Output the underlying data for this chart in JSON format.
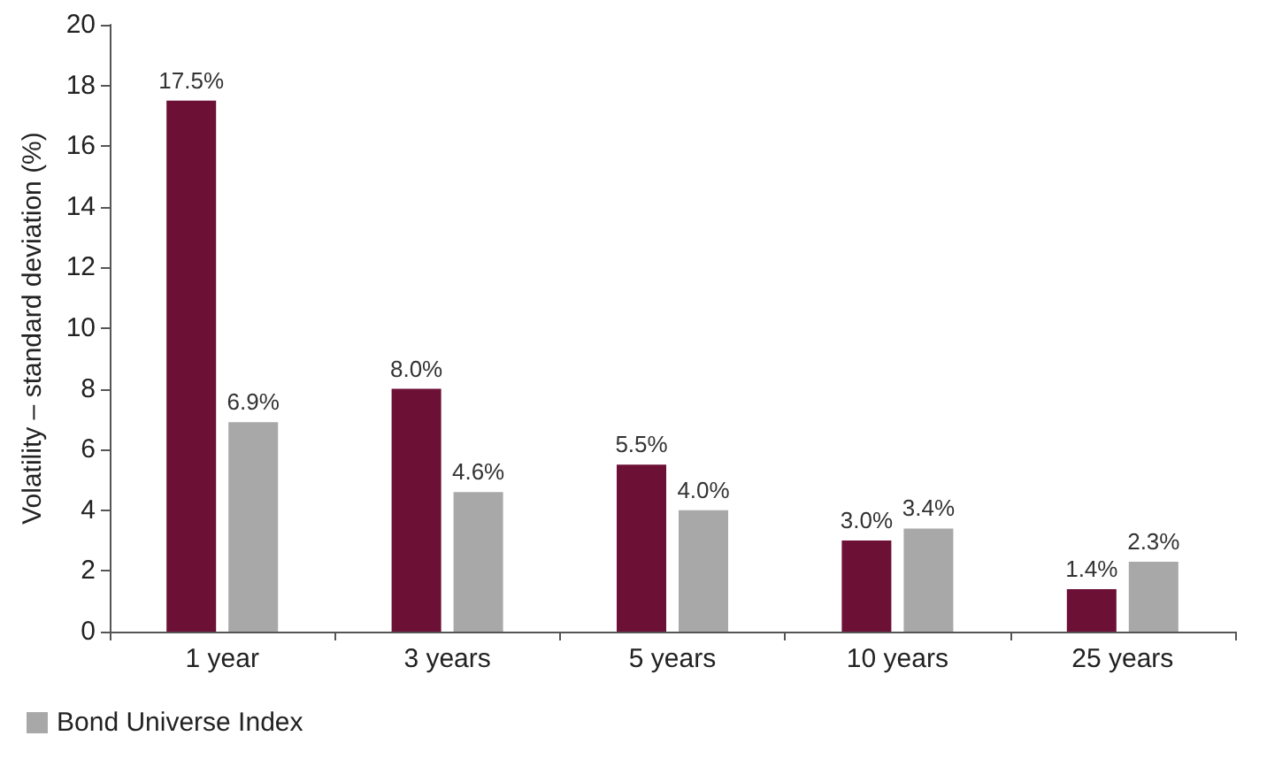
{
  "chart_data": {
    "type": "bar",
    "ylabel": "Volatility – standard deviation (%)",
    "categories": [
      "1 year",
      "3 years",
      "5 years",
      "10 years",
      "25 years"
    ],
    "series": [
      {
        "color": "#6d1035",
        "values": [
          17.5,
          8.0,
          5.5,
          3.0,
          1.4
        ],
        "value_labels": [
          "17.5%",
          "8.0%",
          "5.5%",
          "3.0%",
          "1.4%"
        ]
      },
      {
        "name": "Bond Universe Index",
        "color": "#a8a8a8",
        "values": [
          6.9,
          4.6,
          4.0,
          3.4,
          2.3
        ],
        "value_labels": [
          "6.9%",
          "4.6%",
          "4.0%",
          "3.4%",
          "2.3%"
        ]
      }
    ],
    "ylim": [
      0,
      20
    ],
    "yticks": [
      0,
      2,
      4,
      6,
      8,
      10,
      12,
      14,
      16,
      18,
      20
    ],
    "grid": false,
    "legend": "bottom left"
  }
}
